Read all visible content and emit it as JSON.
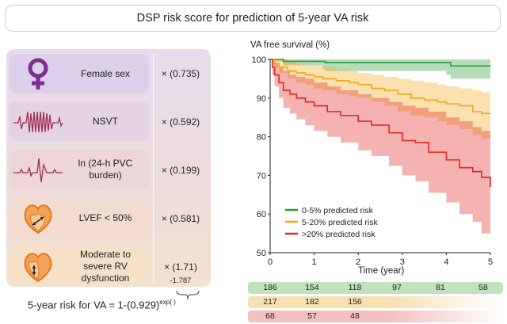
{
  "title": "DSP risk score for prediction of 5-year VA risk",
  "factors": [
    {
      "label": "Female sex",
      "weight": "× (0.735)",
      "icon": "female-symbol-icon",
      "color": "#dcd0ea"
    },
    {
      "label": "NSVT",
      "weight": "× (0.592)",
      "icon": "ecg-nsvt-icon",
      "color": "#e4d3e4"
    },
    {
      "label": "ln (24-h PVC burden)",
      "weight": "× (0.199)",
      "icon": "ecg-pvc-icon",
      "color": "#ecd6d8"
    },
    {
      "label": "LVEF < 50%",
      "weight": "× (0.581)",
      "icon": "heart-lv-icon",
      "color": "#f1dccf"
    },
    {
      "label": "Moderate to severe RV dysfunction",
      "weight": "× (1.71)",
      "icon": "heart-rv-icon",
      "color": "#f5e0c8"
    }
  ],
  "intercept": "-1.787",
  "formula": {
    "text": "5-year risk for VA = 1-(0.929)",
    "exponent": "exp(  )"
  },
  "colors": {
    "green": "#2e9a3a",
    "orange": "#f0a81a",
    "red": "#e0261f",
    "purple": "#7a2f8e",
    "heart": "#e07a22"
  },
  "chart_data": {
    "type": "line",
    "ylabel": "VA free survival (%)",
    "xlabel": "Time (year)",
    "xlim": [
      0,
      5
    ],
    "ylim": [
      50,
      100
    ],
    "xticks": [
      0,
      1,
      2,
      3,
      4,
      5
    ],
    "yticks": [
      50,
      60,
      70,
      80,
      90,
      100
    ],
    "legend_position": "bottom-left",
    "series": [
      {
        "name": "0-5% predicted risk",
        "color": "#2e9a3a",
        "x": [
          0,
          0.1,
          0.3,
          1.2,
          1.25,
          4.0,
          4.1,
          5
        ],
        "y": [
          100,
          100,
          99.5,
          99.5,
          99.2,
          99.2,
          98.3,
          98.3
        ],
        "lower": [
          100,
          99.5,
          98.5,
          97.5,
          97,
          96,
          95,
          94.5
        ],
        "upper": [
          100,
          100,
          100,
          100,
          100,
          100,
          100,
          100
        ]
      },
      {
        "name": "5-20% predicted risk",
        "color": "#f0a81a",
        "x": [
          0,
          0.1,
          0.2,
          0.4,
          0.6,
          0.8,
          1.0,
          1.2,
          1.5,
          1.8,
          2.0,
          2.3,
          2.6,
          2.9,
          3.2,
          3.5,
          3.8,
          4.0,
          4.3,
          4.6,
          4.8,
          5
        ],
        "y": [
          100,
          99,
          98,
          97,
          96.5,
          96,
          95.5,
          95,
          94.5,
          94,
          93.5,
          92.5,
          92,
          91,
          90,
          89.5,
          89,
          88.5,
          88,
          86.5,
          86,
          86
        ],
        "lower": [
          100,
          98,
          96.5,
          95,
          94,
          93.5,
          92.5,
          92,
          91,
          90.5,
          90,
          89,
          88,
          86.5,
          85.5,
          85,
          84,
          83,
          82,
          80.5,
          79.5,
          78
        ],
        "upper": [
          100,
          100,
          100,
          99.5,
          99,
          98.5,
          98.5,
          98,
          97.5,
          97,
          96.5,
          96,
          95.5,
          95,
          94.5,
          94,
          93.5,
          93,
          92.5,
          92,
          91.5,
          91
        ]
      },
      {
        "name": ">20% predicted risk",
        "color": "#e0261f",
        "x": [
          0,
          0.05,
          0.1,
          0.2,
          0.3,
          0.45,
          0.6,
          0.8,
          1.0,
          1.3,
          1.6,
          2.0,
          2.3,
          2.7,
          3.0,
          3.3,
          3.6,
          4.0,
          4.3,
          4.6,
          4.8,
          5
        ],
        "y": [
          100,
          98,
          96,
          94,
          92,
          91,
          90,
          89,
          88,
          86.5,
          85.5,
          84,
          83,
          81,
          79,
          78.5,
          76,
          74,
          72,
          71,
          69.5,
          67
        ],
        "lower": [
          100,
          96,
          93,
          90,
          87.5,
          86,
          84.5,
          83,
          81.5,
          80,
          78.5,
          76.5,
          75,
          72.5,
          70,
          68.5,
          65.5,
          63,
          60,
          58,
          55,
          52.5
        ],
        "upper": [
          100,
          100,
          99,
          98,
          97,
          96,
          95.5,
          95,
          94,
          93,
          92,
          91,
          90,
          89,
          88,
          87.5,
          86.5,
          85,
          84,
          82.5,
          81.5,
          80
        ]
      }
    ]
  },
  "risk_table": {
    "rows": [
      {
        "values": [
          "186",
          "154",
          "118",
          "97",
          "81",
          "58"
        ],
        "color": "#bfe2bf"
      },
      {
        "values": [
          "217",
          "182",
          "156",
          "",
          "",
          ""
        ],
        "color": "#f7e0b4"
      },
      {
        "values": [
          "68",
          "57",
          "48",
          "",
          "",
          ""
        ],
        "color": "#f4c0be"
      }
    ]
  }
}
